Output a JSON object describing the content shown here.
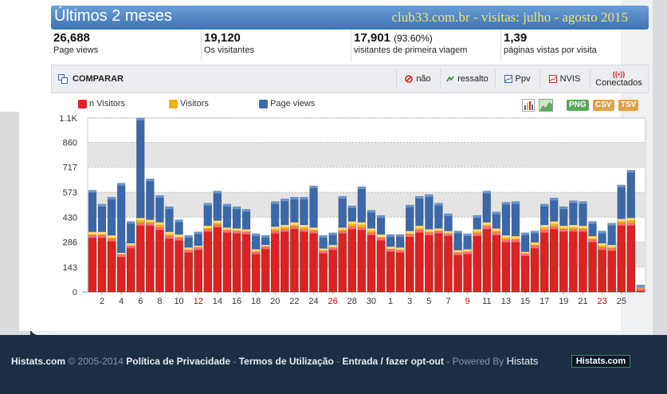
{
  "header": {
    "title": "Últimos 2 meses",
    "subtitle": "club33.com.br - visitas: julho - agosto 2015"
  },
  "stats": [
    {
      "value": "26,688",
      "extra": "",
      "label": "Page views"
    },
    {
      "value": "19,120",
      "extra": "",
      "label": "Os visitantes"
    },
    {
      "value": "17,901",
      "extra": "(93.60%)",
      "label": "visitantes de primeira viagem"
    },
    {
      "value": "1,39",
      "extra": "",
      "label": "páginas vistas por visita"
    }
  ],
  "toolbar": {
    "compare": "COMPARAR",
    "buttons": [
      "não",
      "ressalto",
      "Ppv",
      "NVIS",
      "Conectados"
    ]
  },
  "legend": [
    "n Visitors",
    "Visitors",
    "Page views"
  ],
  "export": [
    "PNG",
    "CSV",
    "TSV"
  ],
  "colors": {
    "new_visitors": "#dd2222",
    "visitors": "#f2b01e",
    "page_views": "#3a68a8",
    "weekend_label": "#cc0000"
  },
  "chart_data": {
    "type": "bar",
    "y_ticks": [
      "0",
      "143",
      "286",
      "430",
      "573",
      "717",
      "860",
      "1.1K"
    ],
    "ylim": [
      0,
      1000
    ],
    "x_tick_labels": [
      "2",
      "4",
      "6",
      "8",
      "10",
      "12",
      "14",
      "16",
      "18",
      "20",
      "22",
      "24",
      "26",
      "28",
      "30",
      "1",
      "3",
      "5",
      "7",
      "9",
      "11",
      "13",
      "15",
      "17",
      "19",
      "21",
      "23",
      "25"
    ],
    "x_tick_red": [
      false,
      false,
      false,
      false,
      false,
      true,
      false,
      false,
      false,
      false,
      false,
      false,
      true,
      false,
      false,
      false,
      false,
      false,
      false,
      true,
      false,
      false,
      false,
      false,
      false,
      false,
      true,
      false
    ],
    "series": [
      {
        "name": "n Visitors",
        "values": [
          325,
          325,
          305,
          215,
          265,
          395,
          395,
          370,
          320,
          310,
          240,
          255,
          360,
          385,
          355,
          350,
          345,
          230,
          260,
          350,
          360,
          375,
          360,
          350,
          235,
          255,
          350,
          375,
          370,
          340,
          310,
          245,
          240,
          330,
          355,
          340,
          350,
          335,
          225,
          230,
          335,
          375,
          340,
          300,
          300,
          220,
          265,
          355,
          375,
          360,
          360,
          360,
          300,
          255,
          250,
          395,
          395,
          20
        ]
      },
      {
        "name": "Visitors",
        "values": [
          345,
          345,
          325,
          225,
          280,
          425,
          415,
          400,
          345,
          330,
          255,
          265,
          380,
          410,
          370,
          365,
          360,
          245,
          270,
          375,
          385,
          400,
          385,
          370,
          250,
          270,
          370,
          405,
          400,
          365,
          330,
          260,
          255,
          350,
          380,
          360,
          365,
          350,
          240,
          245,
          360,
          400,
          365,
          325,
          320,
          230,
          285,
          385,
          405,
          380,
          385,
          380,
          320,
          280,
          270,
          420,
          425,
          25
        ]
      },
      {
        "name": "Page views",
        "values": [
          585,
          505,
          545,
          625,
          405,
          1000,
          650,
          555,
          490,
          415,
          325,
          345,
          510,
          580,
          505,
          490,
          475,
          335,
          325,
          520,
          535,
          545,
          545,
          610,
          325,
          340,
          550,
          495,
          605,
          470,
          440,
          330,
          330,
          500,
          550,
          560,
          510,
          450,
          350,
          335,
          440,
          580,
          460,
          515,
          520,
          340,
          350,
          505,
          540,
          490,
          525,
          520,
          405,
          350,
          395,
          615,
          700,
          40
        ]
      }
    ]
  },
  "footer": {
    "brand": "Histats.com",
    "copyright": "© 2005-2014",
    "privacy": "Política de Privacidade",
    "terms": "Termos de Utilização",
    "optout": "Entrada / fazer opt-out",
    "powered": "Powered By",
    "powered_brand": "Histats",
    "logo": "Histats.com",
    "sep": "-"
  }
}
